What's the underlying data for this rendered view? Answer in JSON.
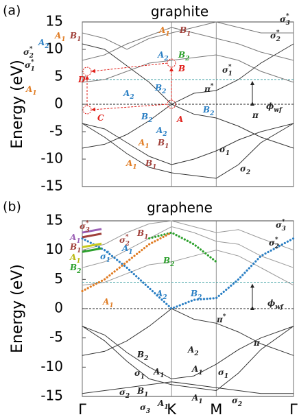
{
  "chart_data": [
    {
      "type": "line",
      "panel_label": "(a)",
      "title": "graphite",
      "ylabel": "Energy (eV)",
      "xlim": [
        0,
        2.366
      ],
      "ylim": [
        -15,
        15
      ],
      "yticks": [
        -15,
        -10,
        -5,
        0,
        5,
        10,
        15
      ],
      "reference_lines": [
        0,
        4.5
      ],
      "x": [
        0,
        0.25,
        0.5,
        0.75,
        1,
        1.25,
        1.5,
        1.75,
        2,
        2.366
      ],
      "series": [
        {
          "color": "#333333",
          "values": [
            -8,
            -7.3,
            -5.5,
            -3,
            0,
            -1.8,
            -2.5,
            -4,
            -6,
            -8
          ]
        },
        {
          "color": "#333333",
          "values": [
            11,
            10,
            7,
            4,
            0,
            2,
            2.5,
            4.5,
            7.5,
            11
          ]
        },
        {
          "color": "#333333",
          "values": [
            -3.5,
            -4.5,
            -7,
            -9.5,
            -11,
            -10,
            -8.5,
            -6.5,
            -5,
            -3.5
          ]
        },
        {
          "color": "#333333",
          "values": [
            -3.5,
            -6,
            -9,
            -11.5,
            -12.5,
            -13,
            -13.5,
            -11,
            -7,
            -3.5
          ]
        },
        {
          "color": "#777777",
          "values": [
            4,
            4.5,
            6,
            7.5,
            8,
            8.5,
            9,
            8,
            6,
            4
          ]
        },
        {
          "color": "#777777",
          "values": [
            8,
            9,
            11,
            12.5,
            14,
            13,
            12,
            11,
            9.5,
            8
          ]
        },
        {
          "color": "#777777",
          "values": [
            13,
            12,
            10,
            12,
            13,
            14,
            15,
            14,
            13,
            13
          ]
        }
      ],
      "annotations": [
        {
          "text": "A",
          "color": "#e0201a"
        },
        {
          "text": "B",
          "color": "#e0201a"
        },
        {
          "text": "C",
          "color": "#e0201a"
        },
        {
          "text": "D",
          "color": "#e0201a"
        },
        {
          "text": "A",
          "sub": "2",
          "color": "#2a7fc4"
        },
        {
          "text": "A",
          "sub": "1",
          "color": "#e07b22"
        },
        {
          "text": "B",
          "sub": "1",
          "color": "#a0403a"
        },
        {
          "text": "σ",
          "sub": "2",
          "sup": "*",
          "color": "#222"
        },
        {
          "text": "σ",
          "sub": "1",
          "sup": "*",
          "color": "#222"
        },
        {
          "text": "A",
          "sub": "1",
          "color": "#e07b22"
        },
        {
          "text": "A",
          "sub": "1",
          "color": "#e07b22"
        },
        {
          "text": "B",
          "sub": "1",
          "color": "#a0403a"
        },
        {
          "text": "A",
          "sub": "2",
          "color": "#2a7fc4"
        },
        {
          "text": "B",
          "sub": "2",
          "color": "#2ca02c"
        },
        {
          "text": "A",
          "sub": "2",
          "color": "#2a7fc4"
        },
        {
          "text": "B",
          "sub": "2",
          "color": "#2a7fc4"
        },
        {
          "text": "B",
          "sub": "2",
          "color": "#2a7fc4"
        },
        {
          "text": "A",
          "sub": "2",
          "color": "#2a7fc4"
        },
        {
          "text": "A",
          "sub": "1",
          "color": "#e07b22"
        },
        {
          "text": "B",
          "sub": "1",
          "color": "#a0403a"
        },
        {
          "text": "A",
          "sub": "1",
          "color": "#e07b22"
        },
        {
          "text": "B",
          "sub": "1",
          "color": "#a0403a"
        },
        {
          "text": "B",
          "sub": "2",
          "color": "#2a7fc4"
        },
        {
          "text": "π",
          "sup": "*",
          "color": "#222"
        },
        {
          "text": "π",
          "color": "#222"
        },
        {
          "text": "σ",
          "sub": "1",
          "sup": "*",
          "color": "#222"
        },
        {
          "text": "σ",
          "sub": "2",
          "sup": "*",
          "color": "#222"
        },
        {
          "text": "σ",
          "sub": "3",
          "sup": "*",
          "color": "#222"
        },
        {
          "text": "σ",
          "sub": "1",
          "color": "#222"
        },
        {
          "text": "σ",
          "sub": "2",
          "color": "#222"
        },
        {
          "text": "ϕ",
          "sub": "wf",
          "color": "#222"
        }
      ]
    },
    {
      "type": "line",
      "panel_label": "(b)",
      "title": "graphene",
      "ylabel": "Energy (eV)",
      "xlim": [
        0,
        2.366
      ],
      "ylim": [
        -15,
        15
      ],
      "yticks": [
        -15,
        -10,
        -5,
        0,
        5,
        10,
        15
      ],
      "xticks": [
        {
          "value": 0,
          "label": "Γ"
        },
        {
          "value": 1,
          "label": "K"
        },
        {
          "value": 1.5,
          "label": "M"
        },
        {
          "value": 2.366,
          "label": "Γ"
        }
      ],
      "reference_lines": [
        0,
        4.5
      ],
      "x": [
        0,
        0.25,
        0.5,
        0.75,
        1,
        1.25,
        1.5,
        1.75,
        2,
        2.366
      ],
      "series": [
        {
          "color": "#333333",
          "values": [
            -8,
            -7.3,
            -5.5,
            -3,
            0,
            -1.8,
            -2.5,
            -4,
            -6,
            -8
          ]
        },
        {
          "color": "#333333",
          "values": [
            -3,
            -4.5,
            -7.5,
            -10,
            -12,
            -11.5,
            -9.5,
            -7,
            -5,
            -3
          ]
        },
        {
          "color": "#333333",
          "values": [
            -3,
            -5.5,
            -9,
            -12,
            -13,
            -13.5,
            -14,
            -11,
            -7,
            -3
          ]
        },
        {
          "color": "#333333",
          "values": [
            -14.5,
            -14,
            -13.5,
            -13,
            -12.5,
            -13,
            -13.5,
            -14,
            -14.5,
            -14.5
          ]
        },
        {
          "color": "#999999",
          "values": [
            4,
            4.5,
            6,
            7.5,
            8,
            9,
            10,
            9,
            7,
            4
          ]
        },
        {
          "color": "#999999",
          "values": [
            7,
            8,
            10,
            12,
            14,
            13,
            11.5,
            11,
            9,
            7
          ]
        },
        {
          "color": "#999999",
          "values": [
            10,
            11,
            13,
            14.5,
            15,
            14,
            13,
            13.5,
            12,
            10
          ]
        },
        {
          "color": "#2a7fc4",
          "dotted": true,
          "values": [
            12,
            10,
            7,
            3.5,
            0,
            1.5,
            1.8,
            5,
            9,
            12
          ]
        },
        {
          "color": "#2ca02c",
          "dotted": true,
          "values": [
            null,
            null,
            null,
            12,
            13,
            11,
            8,
            null,
            null,
            null
          ]
        },
        {
          "color": "#e07b22",
          "dotted": true,
          "values": [
            3,
            5,
            8,
            11,
            13,
            null,
            null,
            null,
            null,
            null
          ]
        }
      ],
      "annotations": [
        {
          "text": "σ",
          "sub": "3",
          "sup": "*",
          "color": "#a0403a"
        },
        {
          "text": "A",
          "sub": "1",
          "color": "#9a5fb5"
        },
        {
          "text": "B",
          "sub": "1",
          "color": "#a0403a"
        },
        {
          "text": "A",
          "sub": "1",
          "color": "#b8b810"
        },
        {
          "text": "B",
          "sub": "2",
          "color": "#2ca02c"
        },
        {
          "text": "σ",
          "sub": "2",
          "sup": "*",
          "color": "#a0403a"
        },
        {
          "text": "B",
          "sub": "1",
          "color": "#a0403a"
        },
        {
          "text": "σ",
          "sub": "1",
          "sup": "*",
          "color": "#2a7fc4"
        },
        {
          "text": "A",
          "sub": "1",
          "color": "#2a7fc4"
        },
        {
          "text": "B",
          "sub": "2",
          "color": "#2ca02c"
        },
        {
          "text": "A",
          "sub": "1",
          "color": "#e07b22"
        },
        {
          "text": "A",
          "sub": "2",
          "color": "#2a7fc4"
        },
        {
          "text": "B",
          "sub": "2",
          "color": "#2a7fc4"
        },
        {
          "text": "π",
          "sup": "*",
          "color": "#222"
        },
        {
          "text": "π",
          "color": "#222"
        },
        {
          "text": "ϕ",
          "sub": "wf",
          "color": "#222"
        },
        {
          "text": "σ",
          "sub": "3",
          "sup": "*",
          "color": "#222"
        },
        {
          "text": "σ",
          "sub": "2",
          "sup": "*",
          "color": "#222"
        },
        {
          "text": "B",
          "sub": "2",
          "color": "#222"
        },
        {
          "text": "A",
          "sub": "2",
          "color": "#222"
        },
        {
          "text": "A",
          "sub": "1",
          "color": "#222"
        },
        {
          "text": "σ",
          "sub": "1",
          "color": "#222"
        },
        {
          "text": "σ",
          "sub": "1",
          "color": "#222"
        },
        {
          "text": "A",
          "sub": "1",
          "color": "#222"
        },
        {
          "text": "σ",
          "sub": "2",
          "color": "#222"
        },
        {
          "text": "B",
          "sub": "1",
          "color": "#222"
        },
        {
          "text": "σ",
          "sub": "3",
          "color": "#222"
        },
        {
          "text": "A",
          "sub": "1",
          "color": "#222"
        },
        {
          "text": "A",
          "sub": "1",
          "color": "#222"
        },
        {
          "text": "σ",
          "sub": "2",
          "color": "#222"
        }
      ]
    }
  ]
}
